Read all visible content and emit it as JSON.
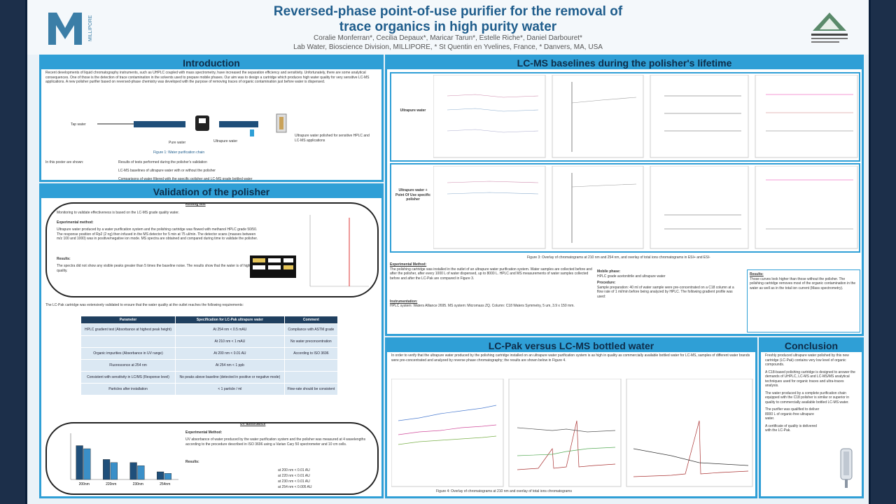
{
  "header": {
    "title_line1": "Reversed-phase point-of-use purifier for the removal of",
    "title_line2": "trace organics in high purity water",
    "authors": "Coralie Monferran*, Cecilia Depaux*, Maricar Tarun*, Estelle Riche*, Daniel Darbouret*",
    "affiliation": "Lab Water, Bioscience Division, MILLIPORE, * St Quentin en Yvelines, France, * Danvers, MA, USA",
    "logo_text": "MILLIPORE"
  },
  "intro": {
    "heading": "Introduction",
    "body": "Recent developments of liquid chromatography instruments, such as UHPLC coupled with mass spectrometry, have increased the separation efficiency and sensitivity. Unfortunately, there are some analytical consequences. One of those is the detection of trace contamination in the solvents used to prepare mobile phases. Our aim was to design a cartridge which produces high water quality for very sensitive LC-MS applications. A new polisher purifier based on reversed-phase chemistry was developed with the purpose of removing traces of organic contamination just before water is dispensed.",
    "diagram_label_1": "Tap water",
    "diagram_label_2": "Pure water",
    "diagram_label_3": "Ultrapure water",
    "diagram_label_4": "Ultrapure water polished for sensitive HPLC and LC-MS applications",
    "caption": "Figure 1: Water purification chain",
    "bullets_intro": "In this poster are shown:",
    "bullets": [
      "Results of tests performed during the polisher's validation",
      "LC-MS baselines of ultrapure water with or without the polisher",
      "Comparisons of water filtered with the specific polisher and LC-MS grade bottled water"
    ]
  },
  "validation": {
    "heading": "Validation of the polisher",
    "bubble1_title": "Rinsing test",
    "bubble1_text": "Monitoring to validate effectiveness is based on the LC-MS grade quality water.",
    "exp_method": "Experimental method:",
    "exp_text": "Ultrapure water produced by a water purification system and the polishing cartridge was flowed with methanol HPLC grade 50/50. The response position of Rp2 (2 ng) then infused in the MS detector for 5 min at 75 ul/min. The detector scans (masses between m/z 100 and 1000) was in positive/negative ion mode. MS spectra are obtained and compared during time to validate the polisher.",
    "results": "Results:",
    "results_text": "The spectra did not show any visible peaks greater than 5 times the baseline noise. The results show that the water is of high quality.",
    "cartridge_text": "The LC-Pak cartridge was extensively validated to ensure that the water quality at the outlet reaches the following requirements:",
    "uv_title": "UV absorbance",
    "uv_exp": "Experimental Method:",
    "uv_text": "UV absorbance of water produced by the water purification system and the polisher was measured at 4 wavelengths according to the procedure described in ISO 3696 using a Varian Cary 50 spectrometer and 10 cm cells.",
    "uv_results": "Results:",
    "uv_values": [
      "at 200 nm < 0.01 AU",
      "at 220 nm < 0.01 AU",
      "at 230 nm < 0.01 AU",
      "at 254 nm < 0.005 AU"
    ]
  },
  "val_table": {
    "headers": [
      "Parameter",
      "Specification for LC-Pak ultrapure water",
      "Comment"
    ],
    "rows": [
      [
        "HPLC gradient test (Absorbance at highest peak height)",
        "At 254 nm < 0.5 mAU",
        "Compliance with ASTM grade"
      ],
      [
        "",
        "At 210 nm < 1 mAU",
        "No water preconcentration"
      ],
      [
        "Organic impurities (Absorbance in UV range)",
        "At 200 nm < 0.01 AU",
        "According to ISO 3696"
      ],
      [
        "Fluorescence at 254 nm",
        "At 254 nm < 1 ppb",
        ""
      ],
      [
        "Consistent with sensitivity in LC/MS (Response level)",
        "No peaks above baseline (detected in positive or negative mode)",
        ""
      ],
      [
        "Particles after installation",
        "< 1 particle / ml",
        "Flow-rate should be consistent"
      ]
    ]
  },
  "lcms": {
    "heading": "LC-MS baselines during the polisher's lifetime",
    "row1_label": "Ultrapure water",
    "row2_label": "Ultrapure water + Point Of Use specific polisher",
    "caption": "Figure 3: Overlay of chromatograms at 210 nm and 254 nm, and overlay of total ions chromatograms in ESI+ and ESI-",
    "exp_heading": "Experimental Method:",
    "exp_text": "The polishing cartridge was installed in the outlet of an ultrapure water purification system. Water samples are collected before and after the polisher, after every 1000 L of water dispensed, up to 8000 L. HPLC and MS measurements of water samples collected before and after the LC-Pak are compared in Figure 3.",
    "instr_heading": "Instrumentation:",
    "instr_text": "HPLC system: Waters Alliance 2695. MS system: Micromass ZQ. Column: C18 Waters Symmetry, 5 um, 3.9 x 150 mm.",
    "mobile_heading": "Mobile phase:",
    "mobile_text": "HPLC grade acetonitrile and ultrapure water",
    "proc_heading": "Procedure:",
    "proc_text": "Sample preparation: 40 ml of water sample were pre-concentrated on a C18 column at a flow rate of 1 ml/min before being analyzed by HPLC. The following gradient profile was used:",
    "results_heading": "Results:",
    "results_text": "Those curves look higher than those without the polisher. The polishing cartridge removes most of the organic contamination in the water as well as in the total ion current (Mass spectrometry)."
  },
  "lcpak": {
    "heading": "LC-Pak versus LC-MS bottled water",
    "intro": "In order to verify that the ultrapure water produced by the polishing cartridge installed on an ultrapure water purification system is as high in quality as commercially available bottled water for LC-MS, samples of different water brands were pre-concentrated and analyzed by reverse phase chromatography; the results are shown below in Figure 4.",
    "caption": "Figure 4: Overlay of chromatograms at 210 nm and overlay of total ions chromatograms"
  },
  "conclusion": {
    "heading": "Conclusion",
    "points": [
      "Freshly produced ultrapure water polished by this new cartridge (LC-Pak) contains very low level of organic compounds.",
      "A C18-based polishing cartridge is designed to answer the demands of UHPLC, LC-MS and LC-MS/MS analytical techniques used for organic traces and ultra-traces analysis.",
      "The water produced by a complete purification chain equipped with the C18 polisher is similar or superior in quality to commercially available bottled LC-MS water.",
      "The purifier was qualified to deliver 8000 L of organic-free ultrapure water.",
      "A certificate of quality is delivered with the LC-Pak."
    ]
  },
  "uv_chart": {
    "type": "bar",
    "categories": [
      "200nm",
      "220nm",
      "230nm",
      "254nm"
    ],
    "series": [
      {
        "values": [
          0.0022,
          0.0013,
          0.0011,
          0.0005
        ]
      },
      {
        "values": [
          0.002,
          0.0011,
          0.0009,
          0.0004
        ]
      }
    ],
    "ylim": [
      0,
      0.003
    ],
    "colors": [
      "#1f4f7a",
      "#3a8fc8"
    ]
  },
  "colors": {
    "accent": "#2f9fd6",
    "title": "#1f5d8c",
    "frame": "#0b1f3a"
  }
}
